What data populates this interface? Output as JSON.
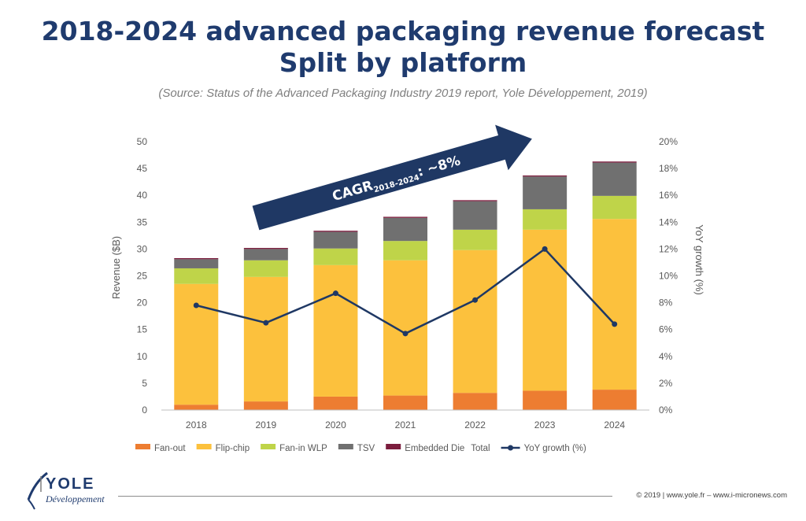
{
  "header": {
    "title_line1": "2018-2024 advanced packaging revenue forecast",
    "title_line2": "Split by platform",
    "source": "(Source: Status of the Advanced Packaging Industry 2019 report, Yole Développement, 2019)"
  },
  "chart_data": {
    "type": "bar",
    "stacked": true,
    "categories": [
      "2018",
      "2019",
      "2020",
      "2021",
      "2022",
      "2023",
      "2024"
    ],
    "series": [
      {
        "name": "Fan-out",
        "color": "#ed7d31",
        "values": [
          1.0,
          1.6,
          2.5,
          2.7,
          3.2,
          3.6,
          3.8
        ]
      },
      {
        "name": "Flip-chip",
        "color": "#fcc13d",
        "values": [
          22.5,
          23.2,
          24.5,
          25.2,
          26.6,
          30.0,
          31.8
        ]
      },
      {
        "name": "Fan-in WLP",
        "color": "#bfd449",
        "values": [
          2.9,
          3.1,
          3.1,
          3.6,
          3.8,
          3.8,
          4.3
        ]
      },
      {
        "name": "TSV",
        "color": "#707070",
        "values": [
          1.7,
          2.1,
          3.1,
          4.3,
          5.3,
          6.1,
          6.2
        ]
      },
      {
        "name": "Embedded Die",
        "color": "#7b1d3d",
        "values": [
          0.2,
          0.2,
          0.2,
          0.2,
          0.2,
          0.2,
          0.2
        ]
      }
    ],
    "total_legend_label": "Total",
    "line_series": {
      "name": "YoY growth (%)",
      "color": "#1f3864",
      "values": [
        7.8,
        6.5,
        8.7,
        5.7,
        8.2,
        12.0,
        6.4
      ]
    },
    "ylabel": "Revenue ($B)",
    "y2label": "YoY growth (%)",
    "ylim": [
      0,
      50
    ],
    "y2lim": [
      0,
      20
    ],
    "yticks": [
      "0",
      "5",
      "10",
      "15",
      "20",
      "25",
      "30",
      "35",
      "40",
      "45",
      "50"
    ],
    "y2ticks": [
      "0%",
      "2%",
      "4%",
      "6%",
      "8%",
      "10%",
      "12%",
      "14%",
      "16%",
      "18%",
      "20%"
    ],
    "annotation": {
      "main": "CAGR",
      "sub": "2018-2024",
      "value": ": ~8%"
    },
    "arrow_color": "#1f3864",
    "grid": false,
    "legend_position": "bottom"
  },
  "logo": {
    "name": "YOLE",
    "sub": "Développement"
  },
  "footer": {
    "text": "© 2019 | www.yole.fr – www.i-micronews.com"
  }
}
